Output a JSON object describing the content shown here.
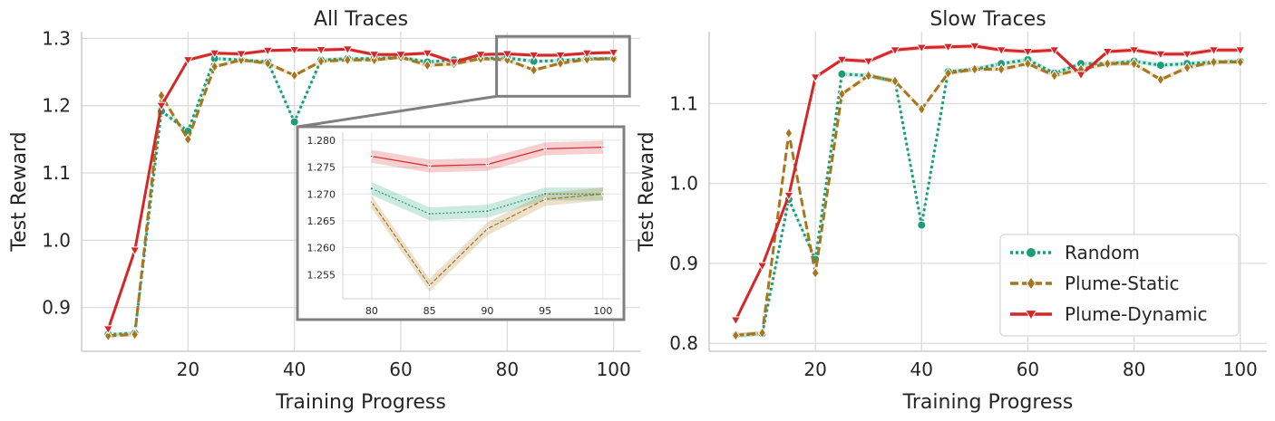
{
  "chart_data": [
    {
      "type": "line",
      "title": "All Traces",
      "xlabel": "Training Progress",
      "ylabel": "Test Reward",
      "xlim": [
        0,
        105
      ],
      "ylim": [
        0.835,
        1.31
      ],
      "xticks": [
        20,
        40,
        60,
        80,
        100
      ],
      "yticks": [
        0.9,
        1.0,
        1.1,
        1.2,
        1.3
      ],
      "ytick_labels": [
        "0.9",
        "1.0",
        "1.1",
        "1.2",
        "1.3"
      ],
      "x": [
        5,
        10,
        15,
        20,
        25,
        30,
        35,
        40,
        45,
        50,
        55,
        60,
        65,
        70,
        75,
        80,
        85,
        90,
        95,
        100
      ],
      "series": [
        {
          "name": "Random",
          "color": "#1b9e77",
          "style": "dotted",
          "marker": "circle",
          "values": [
            0.86,
            0.862,
            1.192,
            1.162,
            1.27,
            1.268,
            1.265,
            1.176,
            1.268,
            1.27,
            1.27,
            1.272,
            1.265,
            1.268,
            1.27,
            1.271,
            1.266,
            1.267,
            1.27,
            1.27
          ]
        },
        {
          "name": "Plume-Static",
          "color": "#a6761d",
          "style": "dashed",
          "marker": "diamond",
          "values": [
            0.858,
            0.86,
            1.215,
            1.15,
            1.258,
            1.268,
            1.263,
            1.245,
            1.266,
            1.268,
            1.268,
            1.272,
            1.26,
            1.262,
            1.27,
            1.268,
            1.253,
            1.263,
            1.269,
            1.27
          ]
        },
        {
          "name": "Plume-Dynamic",
          "color": "#d62728",
          "style": "solid",
          "marker": "triangle-down",
          "values": [
            0.868,
            0.985,
            1.2,
            1.268,
            1.278,
            1.277,
            1.282,
            1.283,
            1.283,
            1.284,
            1.276,
            1.276,
            1.278,
            1.265,
            1.276,
            1.277,
            1.275,
            1.275,
            1.278,
            1.279
          ]
        }
      ],
      "zoom_region": {
        "xlim": [
          78,
          103
        ],
        "ylim": [
          1.214,
          1.303
        ]
      },
      "inset": {
        "xlim": [
          77.5,
          101.5
        ],
        "ylim": [
          1.2505,
          1.2815
        ],
        "xticks": [
          80,
          85,
          90,
          95,
          100
        ],
        "yticks": [
          1.255,
          1.26,
          1.265,
          1.27,
          1.275,
          1.28
        ],
        "ytick_labels": [
          "1.255",
          "1.260",
          "1.265",
          "1.270",
          "1.275",
          "1.280"
        ],
        "x": [
          80,
          85,
          90,
          95,
          100
        ],
        "series": [
          {
            "name": "Random",
            "values": [
              1.271,
              1.2663,
              1.2668,
              1.27,
              1.27
            ],
            "band": 0.0012
          },
          {
            "name": "Plume-Static",
            "values": [
              1.2685,
              1.253,
              1.2635,
              1.269,
              1.27
            ],
            "band": 0.0012
          },
          {
            "name": "Plume-Dynamic",
            "values": [
              1.277,
              1.2752,
              1.2755,
              1.2784,
              1.2787
            ],
            "band": 0.0012
          }
        ]
      }
    },
    {
      "type": "line",
      "title": "Slow Traces",
      "xlabel": "Training Progress",
      "ylabel": "Test Reward",
      "xlim": [
        0,
        105
      ],
      "ylim": [
        0.79,
        1.19
      ],
      "xticks": [
        20,
        40,
        60,
        80,
        100
      ],
      "yticks": [
        0.8,
        0.9,
        1.0,
        1.1
      ],
      "ytick_labels": [
        "0.8",
        "0.9",
        "1.0",
        "1.1"
      ],
      "x": [
        5,
        10,
        15,
        20,
        25,
        30,
        35,
        40,
        45,
        50,
        55,
        60,
        65,
        70,
        75,
        80,
        85,
        90,
        95,
        100
      ],
      "series": [
        {
          "name": "Random",
          "color": "#1b9e77",
          "style": "dotted",
          "marker": "circle",
          "values": [
            0.81,
            0.812,
            0.98,
            0.905,
            1.137,
            1.135,
            1.128,
            0.948,
            1.14,
            1.143,
            1.15,
            1.155,
            1.138,
            1.15,
            1.15,
            1.153,
            1.148,
            1.15,
            1.152,
            1.153
          ]
        },
        {
          "name": "Plume-Static",
          "color": "#a6761d",
          "style": "dashed",
          "marker": "diamond",
          "values": [
            0.81,
            0.813,
            1.063,
            0.888,
            1.112,
            1.135,
            1.128,
            1.093,
            1.138,
            1.143,
            1.143,
            1.15,
            1.135,
            1.143,
            1.15,
            1.15,
            1.13,
            1.145,
            1.152,
            1.152
          ]
        },
        {
          "name": "Plume-Dynamic",
          "color": "#d62728",
          "style": "solid",
          "marker": "triangle-down",
          "values": [
            0.829,
            0.897,
            0.985,
            1.133,
            1.155,
            1.153,
            1.167,
            1.17,
            1.171,
            1.172,
            1.167,
            1.165,
            1.167,
            1.136,
            1.165,
            1.167,
            1.162,
            1.162,
            1.167,
            1.167
          ]
        }
      ],
      "legend": {
        "placement": "lower-right",
        "entries": [
          "Random",
          "Plume-Static",
          "Plume-Dynamic"
        ]
      }
    }
  ]
}
